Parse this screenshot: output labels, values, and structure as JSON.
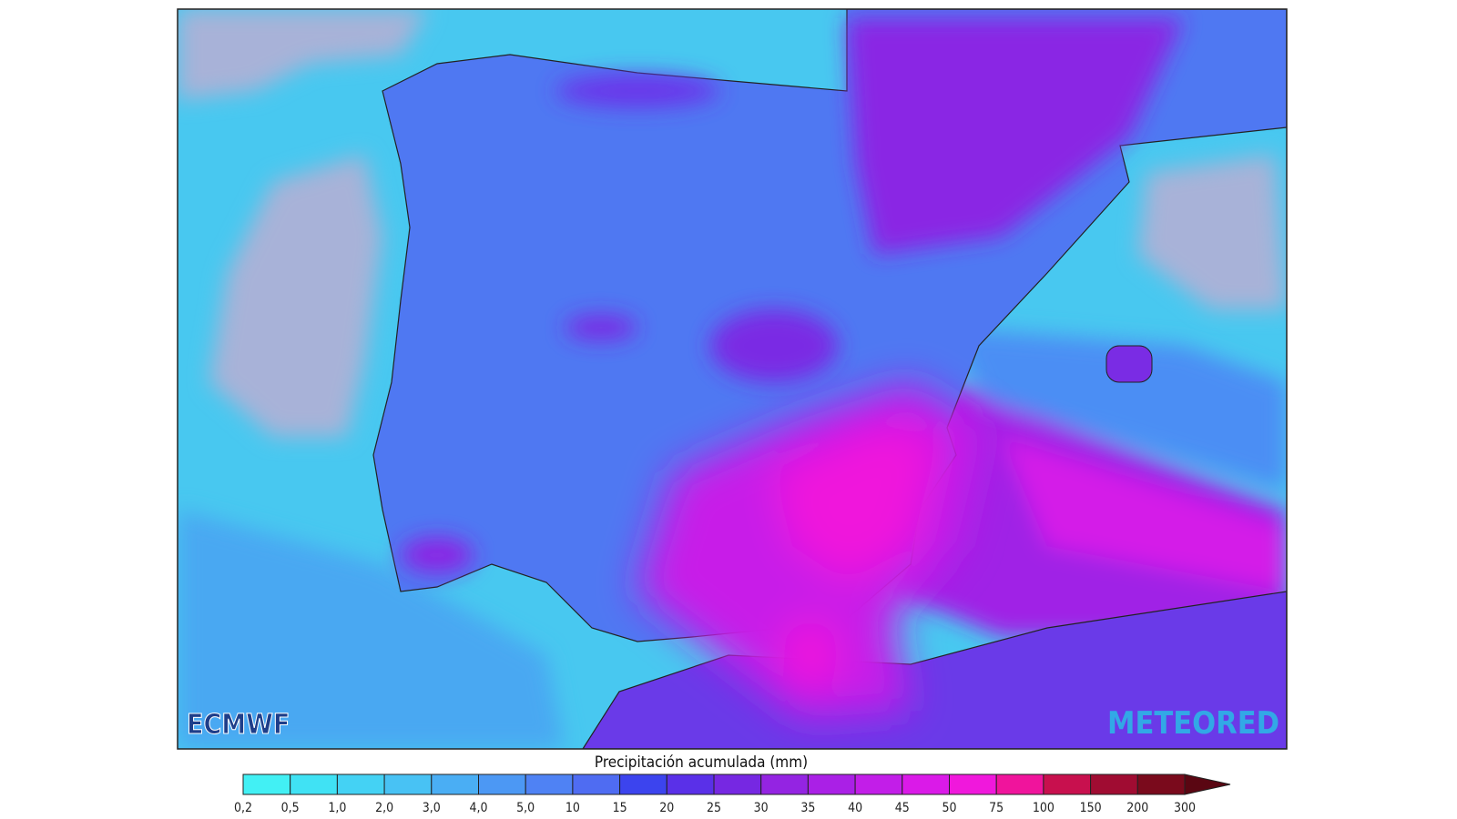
{
  "map": {
    "source_logo": "ECMWF",
    "brand_logo": "METEORED"
  },
  "legend": {
    "title": "Precipitación acumulada (mm)",
    "labels": [
      "0,2",
      "0,5",
      "1,0",
      "2,0",
      "3,0",
      "4,0",
      "5,0",
      "10",
      "15",
      "20",
      "25",
      "30",
      "35",
      "40",
      "45",
      "50",
      "75",
      "100",
      "150",
      "200",
      "300"
    ],
    "colors": [
      "#42f0f4",
      "#40e2f4",
      "#44d2f4",
      "#48c2f4",
      "#4aaef4",
      "#4c98f4",
      "#4f82f4",
      "#4f6cf2",
      "#3c44ee",
      "#5a30e8",
      "#7628e2",
      "#9424e2",
      "#aa20e6",
      "#c21ee8",
      "#da1ae8",
      "#f018dc",
      "#f0149c",
      "#c8104e",
      "#a00c32",
      "#7a0a1c"
    ],
    "over_color": "#5a0612"
  }
}
